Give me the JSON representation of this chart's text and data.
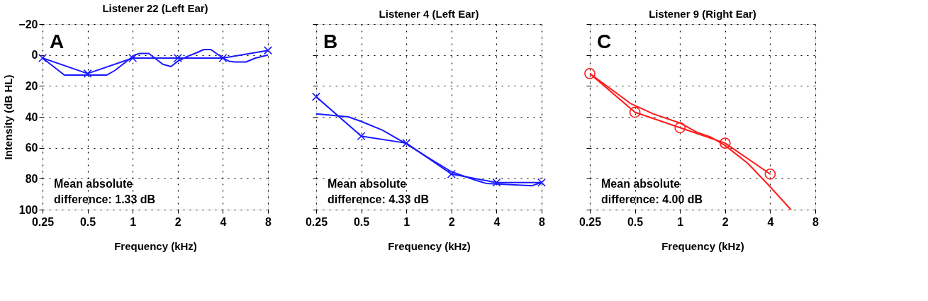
{
  "chart_data": [
    {
      "type": "line",
      "title": "Listener 22 (Left Ear)",
      "xlabel": "Frequency (kHz)",
      "ylabel": "Intensity (dB HL)",
      "annotations": [
        "A",
        "Mean absolute\ndifference: 1.33 dB"
      ],
      "log": "x",
      "grid": true,
      "xlim": [
        0.25,
        8
      ],
      "xticks": [
        0.25,
        0.5,
        1,
        2,
        4,
        8
      ],
      "ylim": [
        100,
        -20
      ],
      "yticks": [
        -20,
        0,
        20,
        40,
        60,
        80,
        100
      ],
      "series": [
        {
          "color": "#1a1aff",
          "marker": "cross",
          "x": [
            0.25,
            0.5,
            1,
            2,
            4,
            8
          ],
          "values": [
            2,
            12,
            2,
            2,
            2,
            -3
          ]
        },
        {
          "color": "#1a1aff",
          "marker": "none",
          "x": [
            0.25,
            0.35,
            0.67,
            0.76,
            1.03,
            1.11,
            1.28,
            1.59,
            1.8,
            2.0,
            2.3,
            2.6,
            2.98,
            3.33,
            4.0,
            4.4,
            4.8,
            5.7,
            6.6,
            8
          ],
          "values": [
            2,
            13,
            13,
            10,
            0,
            -1,
            -1,
            6,
            7.5,
            4,
            1,
            -1,
            -3.5,
            -3.5,
            2,
            4,
            4.5,
            4.5,
            2,
            0
          ]
        }
      ]
    },
    {
      "type": "line",
      "title": "Listener 4 (Left Ear)",
      "xlabel": "Frequency (kHz)",
      "annotations": [
        "B",
        "Mean absolute\ndifference: 4.33 dB"
      ],
      "log": "x",
      "grid": true,
      "tick_labels": "x",
      "xlim": [
        0.25,
        8
      ],
      "xticks": [
        0.25,
        0.5,
        1,
        2,
        4,
        8
      ],
      "ylim": [
        100,
        -20
      ],
      "yticks": [
        -20,
        0,
        20,
        40,
        60,
        80,
        100
      ],
      "series": [
        {
          "color": "#1a1aff",
          "marker": "cross",
          "x": [
            0.25,
            0.5,
            1,
            2,
            4,
            8
          ],
          "values": [
            27,
            52.5,
            57,
            77,
            82.5,
            82.5
          ]
        },
        {
          "color": "#1a1aff",
          "marker": "none",
          "x": [
            0.25,
            0.41,
            0.5,
            0.69,
            1,
            1.35,
            2,
            2.8,
            3.4,
            6.9,
            8
          ],
          "values": [
            38,
            40,
            43,
            48.5,
            57.5,
            65.5,
            75.5,
            80.5,
            83,
            84.5,
            82.5
          ]
        }
      ]
    },
    {
      "type": "line",
      "title": "Listener 9 (Right Ear)",
      "xlabel": "Frequency (kHz)",
      "annotations": [
        "C",
        "Mean absolute\ndifference: 4.00 dB"
      ],
      "log": "x",
      "grid": true,
      "tick_labels": "x",
      "xlim": [
        0.25,
        8
      ],
      "xticks": [
        0.25,
        0.5,
        1,
        2,
        4,
        8
      ],
      "ylim": [
        100,
        -20
      ],
      "yticks": [
        -20,
        0,
        20,
        40,
        60,
        80,
        100
      ],
      "series": [
        {
          "color": "#ff1a1a",
          "marker": "circle",
          "x": [
            0.25,
            0.5,
            1,
            2,
            4
          ],
          "values": [
            12,
            37,
            47,
            57,
            77
          ]
        },
        {
          "color": "#ff1a1a",
          "marker": "none",
          "x": [
            0.25,
            0.47,
            0.66,
            1,
            1.3,
            1.6,
            2,
            2.83,
            3.85,
            5.5
          ],
          "values": [
            12,
            31.5,
            38,
            44,
            50,
            53,
            58.5,
            70,
            83.5,
            100
          ]
        }
      ]
    }
  ]
}
